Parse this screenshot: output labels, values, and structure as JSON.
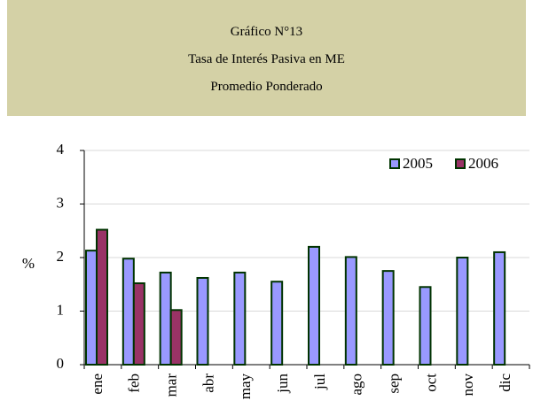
{
  "chart_data": {
    "type": "bar",
    "title": "Gráfico N°13",
    "subtitle": "Tasa de Interés Pasiva en ME",
    "subtitle2": "Promedio Ponderado",
    "ylabel": "%",
    "categories": [
      "ene",
      "feb",
      "mar",
      "abr",
      "may",
      "jun",
      "jul",
      "ago",
      "sep",
      "oct",
      "nov",
      "dic"
    ],
    "series": [
      {
        "name": "2005",
        "color": "#9999ff",
        "values": [
          2.13,
          1.98,
          1.72,
          1.62,
          1.72,
          1.55,
          2.2,
          2.01,
          1.75,
          1.45,
          2.0,
          2.1
        ]
      },
      {
        "name": "2006",
        "color": "#993366",
        "values": [
          2.52,
          1.52,
          1.02,
          null,
          null,
          null,
          null,
          null,
          null,
          null,
          null,
          null
        ]
      }
    ],
    "ylim": [
      0,
      4
    ],
    "yticks": [
      0,
      1,
      2,
      3,
      4
    ],
    "grid": true,
    "legend": "top-right",
    "edgecolor": "#003300"
  }
}
